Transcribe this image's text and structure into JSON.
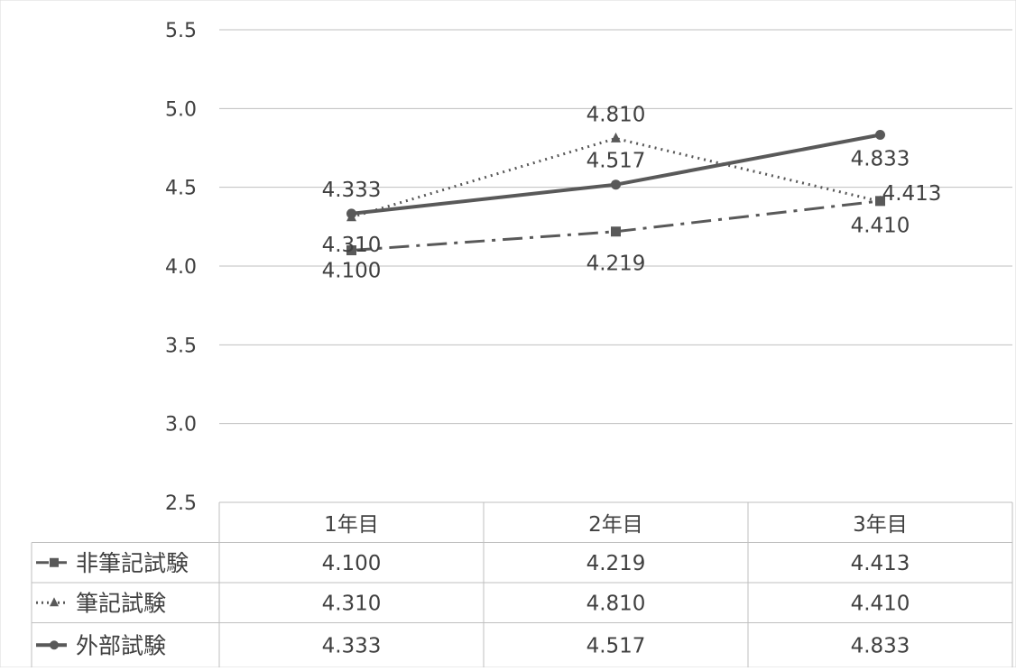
{
  "chart_data": {
    "type": "line",
    "categories": [
      "1年目",
      "2年目",
      "3年目"
    ],
    "series": [
      {
        "name": "非筆記試験",
        "values": [
          4.1,
          4.219,
          4.413
        ],
        "labels": [
          "4.100",
          "4.219",
          "4.413"
        ],
        "line_style": "dash-dot",
        "marker": "square"
      },
      {
        "name": "筆記試験",
        "values": [
          4.31,
          4.81,
          4.41
        ],
        "labels": [
          "4.310",
          "4.810",
          "4.410"
        ],
        "line_style": "dotted",
        "marker": "triangle"
      },
      {
        "name": "外部試験",
        "values": [
          4.333,
          4.517,
          4.833
        ],
        "labels": [
          "4.333",
          "4.517",
          "4.833"
        ],
        "line_style": "solid",
        "marker": "circle"
      }
    ],
    "y_ticks": [
      "2.5",
      "3.0",
      "3.5",
      "4.0",
      "4.5",
      "5.0",
      "5.5"
    ],
    "ylim": [
      2.5,
      5.5
    ],
    "grid": true,
    "legend": "data-table",
    "line_color": "#595959"
  }
}
